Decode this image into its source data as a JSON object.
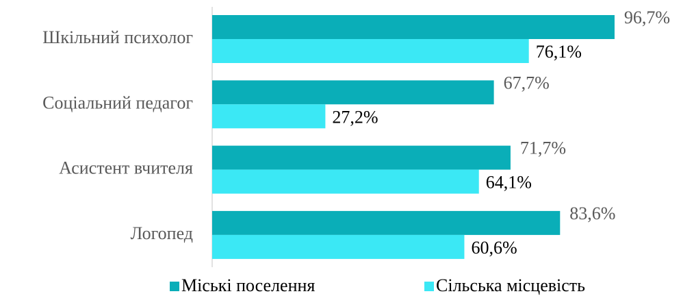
{
  "chart_data": {
    "type": "bar",
    "orientation": "horizontal",
    "categories": [
      "Шкільний психолог",
      "Соціальний педагог",
      "Асистент вчителя",
      "Логопед"
    ],
    "series": [
      {
        "name": "Міські поселення",
        "color": "#0aaeb8",
        "values": [
          96.7,
          67.7,
          71.7,
          83.6
        ],
        "value_labels": [
          "96,7%",
          "67,7%",
          "71,7%",
          "83,6%"
        ]
      },
      {
        "name": "Сільська місцевість",
        "color": "#3be8f5",
        "values": [
          76.1,
          27.2,
          64.1,
          60.6
        ],
        "value_labels": [
          "76,1%",
          "27,2%",
          "64,1%",
          "60,6%"
        ]
      }
    ],
    "legend": "bottom"
  }
}
